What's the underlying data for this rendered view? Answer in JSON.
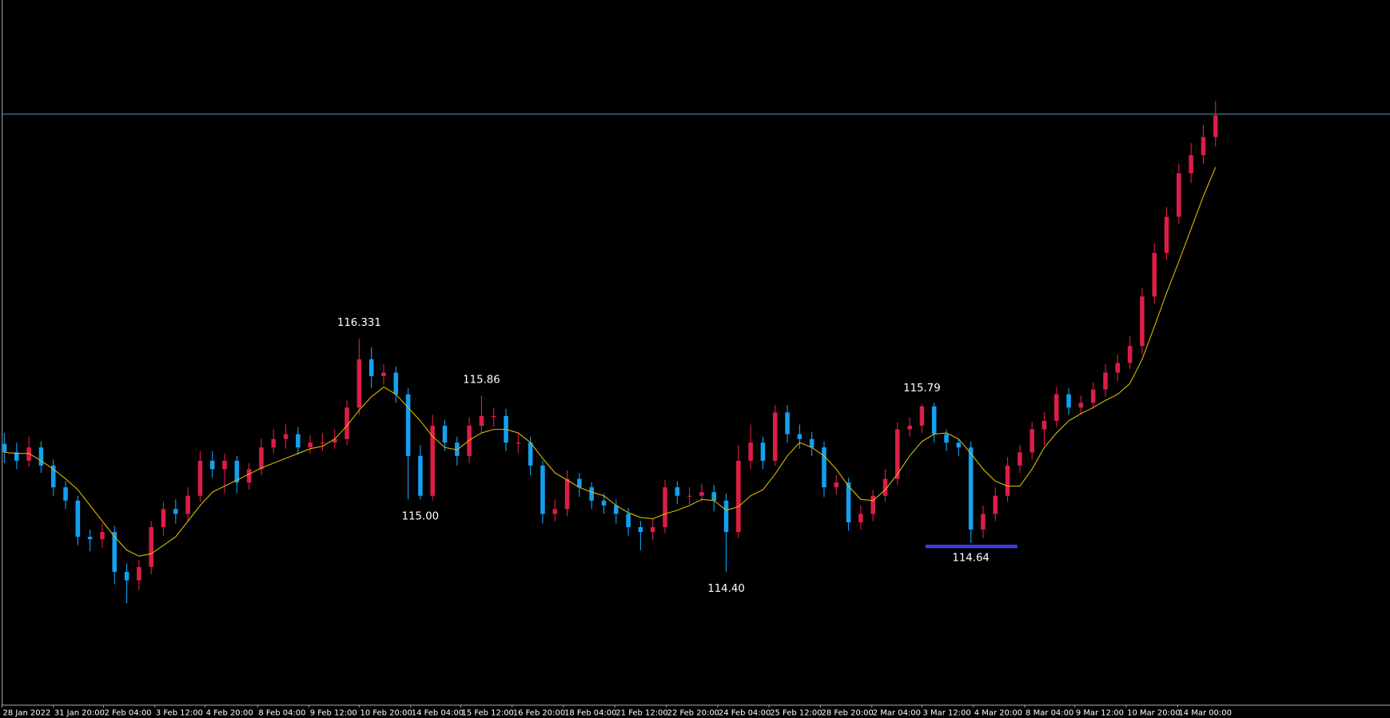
{
  "chart_data": {
    "type": "candlestick",
    "up_color": "#dc1e46",
    "down_color": "#14a0f0",
    "open": [
      115.46,
      115.39,
      115.32,
      115.43,
      115.28,
      115.1,
      114.99,
      114.69,
      114.67,
      114.73,
      114.4,
      114.33,
      114.44,
      114.77,
      114.92,
      114.88,
      115.03,
      115.32,
      115.25,
      115.32,
      115.14,
      115.25,
      115.43,
      115.5,
      115.54,
      115.43,
      115.47,
      115.47,
      115.5,
      115.76,
      116.16,
      116.02,
      116.05,
      115.87,
      115.36,
      115.03,
      115.61,
      115.47,
      115.36,
      115.61,
      115.69,
      115.69,
      115.47,
      115.47,
      115.28,
      114.88,
      114.92,
      115.17,
      115.1,
      114.99,
      114.95,
      114.88,
      114.77,
      114.73,
      114.77,
      115.1,
      115.03,
      115.03,
      115.06,
      114.99,
      114.73,
      115.32,
      115.47,
      115.32,
      115.72,
      115.54,
      115.5,
      115.43,
      115.1,
      115.14,
      114.81,
      114.88,
      115.03,
      115.17,
      115.58,
      115.61,
      115.77,
      115.54,
      115.47,
      115.43,
      114.75,
      114.88,
      115.03,
      115.28,
      115.39,
      115.58,
      115.65,
      115.87,
      115.76,
      115.8,
      115.91,
      116.05,
      116.13,
      116.27,
      116.68,
      117.04,
      117.34,
      117.7,
      117.85,
      118.0
    ],
    "high": [
      115.55,
      115.47,
      115.52,
      115.48,
      115.33,
      115.15,
      115.03,
      114.75,
      114.8,
      114.78,
      114.47,
      114.5,
      114.82,
      114.98,
      115.0,
      115.1,
      115.4,
      115.4,
      115.38,
      115.36,
      115.3,
      115.5,
      115.58,
      115.62,
      115.6,
      115.53,
      115.55,
      115.58,
      115.82,
      116.33,
      116.26,
      116.12,
      116.1,
      115.92,
      115.45,
      115.7,
      115.66,
      115.52,
      115.68,
      115.86,
      115.76,
      115.75,
      115.54,
      115.52,
      115.32,
      115.0,
      115.24,
      115.22,
      115.14,
      115.05,
      115.0,
      114.93,
      114.82,
      114.84,
      115.16,
      115.15,
      115.1,
      115.13,
      115.12,
      115.05,
      115.45,
      115.62,
      115.52,
      115.78,
      115.78,
      115.62,
      115.56,
      115.48,
      115.2,
      115.18,
      114.95,
      115.08,
      115.25,
      115.64,
      115.68,
      115.79,
      115.8,
      115.58,
      115.5,
      115.48,
      114.95,
      115.1,
      115.35,
      115.45,
      115.64,
      115.72,
      115.93,
      115.92,
      115.86,
      115.97,
      116.12,
      116.2,
      116.35,
      116.75,
      117.12,
      117.42,
      117.78,
      117.95,
      118.1,
      118.3
    ],
    "low": [
      115.3,
      115.25,
      115.27,
      115.22,
      115.03,
      114.92,
      114.62,
      114.57,
      114.6,
      114.3,
      114.14,
      114.25,
      114.38,
      114.7,
      114.8,
      114.82,
      114.98,
      115.18,
      115.05,
      115.05,
      115.08,
      115.2,
      115.38,
      115.42,
      115.37,
      115.38,
      115.4,
      115.42,
      115.45,
      115.7,
      115.92,
      115.95,
      115.8,
      115.0,
      115.0,
      114.99,
      115.4,
      115.28,
      115.3,
      115.55,
      115.6,
      115.4,
      115.38,
      115.2,
      114.8,
      114.82,
      114.86,
      115.02,
      114.92,
      114.88,
      114.8,
      114.7,
      114.58,
      114.66,
      114.72,
      114.96,
      114.96,
      114.98,
      114.9,
      114.4,
      114.68,
      115.25,
      115.25,
      115.28,
      115.47,
      115.42,
      115.36,
      115.02,
      115.04,
      114.74,
      114.75,
      114.82,
      114.98,
      115.12,
      115.52,
      115.55,
      115.47,
      115.4,
      115.36,
      114.64,
      114.68,
      114.82,
      114.98,
      115.22,
      115.33,
      115.45,
      115.6,
      115.7,
      115.7,
      115.75,
      115.85,
      115.98,
      116.08,
      116.2,
      116.62,
      116.98,
      117.28,
      117.62,
      117.78,
      117.92
    ],
    "close": [
      115.39,
      115.32,
      115.43,
      115.28,
      115.1,
      114.99,
      114.69,
      114.67,
      114.73,
      114.4,
      114.33,
      114.44,
      114.77,
      114.92,
      114.88,
      115.03,
      115.32,
      115.25,
      115.32,
      115.14,
      115.25,
      115.43,
      115.5,
      115.54,
      115.43,
      115.47,
      115.47,
      115.5,
      115.76,
      116.16,
      116.02,
      116.05,
      115.87,
      115.36,
      115.03,
      115.61,
      115.47,
      115.36,
      115.61,
      115.69,
      115.69,
      115.47,
      115.47,
      115.28,
      114.88,
      114.92,
      115.17,
      115.1,
      114.99,
      114.95,
      114.88,
      114.77,
      114.73,
      114.77,
      115.1,
      115.03,
      115.03,
      115.06,
      114.99,
      114.73,
      115.32,
      115.47,
      115.32,
      115.72,
      115.54,
      115.5,
      115.43,
      115.1,
      115.14,
      114.81,
      114.88,
      115.03,
      115.17,
      115.58,
      115.61,
      115.77,
      115.54,
      115.47,
      115.43,
      114.75,
      114.88,
      115.03,
      115.28,
      115.39,
      115.58,
      115.65,
      115.87,
      115.76,
      115.8,
      115.91,
      116.05,
      116.13,
      116.27,
      116.68,
      117.04,
      117.34,
      117.7,
      117.85,
      118.0,
      118.18
    ],
    "ma": {
      "color": "#d8b800",
      "values": [
        115.39,
        115.38,
        115.38,
        115.32,
        115.25,
        115.17,
        115.08,
        114.95,
        114.82,
        114.69,
        114.58,
        114.53,
        114.55,
        114.62,
        114.69,
        114.82,
        114.95,
        115.06,
        115.11,
        115.16,
        115.21,
        115.26,
        115.3,
        115.34,
        115.38,
        115.42,
        115.44,
        115.5,
        115.61,
        115.74,
        115.85,
        115.93,
        115.87,
        115.76,
        115.65,
        115.52,
        115.43,
        115.41,
        115.49,
        115.55,
        115.58,
        115.58,
        115.55,
        115.47,
        115.34,
        115.22,
        115.16,
        115.1,
        115.06,
        115.03,
        114.95,
        114.89,
        114.85,
        114.84,
        114.88,
        114.91,
        114.95,
        115.0,
        114.99,
        114.91,
        114.94,
        115.03,
        115.08,
        115.21,
        115.36,
        115.47,
        115.43,
        115.36,
        115.25,
        115.11,
        115.0,
        114.99,
        115.08,
        115.21,
        115.36,
        115.48,
        115.54,
        115.55,
        115.5,
        115.38,
        115.25,
        115.15,
        115.11,
        115.11,
        115.25,
        115.43,
        115.55,
        115.65,
        115.71,
        115.76,
        115.82,
        115.87,
        115.96,
        116.16,
        116.43,
        116.71,
        116.97,
        117.24,
        117.51,
        117.75
      ]
    },
    "price_line": {
      "value": 118.19,
      "color": "#5a7fb0"
    },
    "annotations": [
      {
        "value": 116.331,
        "label": "116.331",
        "x": 29,
        "position": "above"
      },
      {
        "value": 115,
        "label": "115.00",
        "x": 34,
        "position": "below"
      },
      {
        "value": 115.86,
        "label": "115.86",
        "x": 39,
        "position": "above"
      },
      {
        "value": 114.4,
        "label": "114.40",
        "x": 59,
        "position": "below"
      },
      {
        "value": 115.79,
        "label": "115.79",
        "x": 75,
        "position": "above"
      },
      {
        "value": 114.64,
        "label": "114.64",
        "x": 79,
        "position": "below",
        "underline": {
          "from": 75.3,
          "to": 82.8,
          "color": "#3c3ce0"
        }
      }
    ],
    "xlim": [
      -0.36,
      113.26
    ],
    "ylim": [
      113.3,
      119.135
    ],
    "xticks": [
      {
        "value": -0.2,
        "label": "28 Jan 2022"
      },
      {
        "value": 4.0,
        "label": "31 Jan 20:00"
      },
      {
        "value": 8.1,
        "label": "2 Feb 04:00"
      },
      {
        "value": 12.3,
        "label": "3 Feb 12:00"
      },
      {
        "value": 16.4,
        "label": "4 Feb 20:00"
      },
      {
        "value": 20.7,
        "label": "8 Feb 04:00"
      },
      {
        "value": 24.9,
        "label": "9 Feb 12:00"
      },
      {
        "value": 29.0,
        "label": "10 Feb 20:00"
      },
      {
        "value": 33.2,
        "label": "14 Feb 04:00"
      },
      {
        "value": 37.3,
        "label": "15 Feb 12:00"
      },
      {
        "value": 41.5,
        "label": "16 Feb 20:00"
      },
      {
        "value": 45.7,
        "label": "18 Feb 04:00"
      },
      {
        "value": 49.9,
        "label": "21 Feb 12:00"
      },
      {
        "value": 54.1,
        "label": "22 Feb 20:00"
      },
      {
        "value": 58.3,
        "label": "24 Feb 04:00"
      },
      {
        "value": 62.5,
        "label": "25 Feb 12:00"
      },
      {
        "value": 66.7,
        "label": "28 Feb 20:00"
      },
      {
        "value": 70.9,
        "label": "2 Mar 04:00"
      },
      {
        "value": 75.0,
        "label": "3 Mar 12:00"
      },
      {
        "value": 79.2,
        "label": "4 Mar 20:00"
      },
      {
        "value": 83.4,
        "label": "8 Mar 04:00"
      },
      {
        "value": 87.5,
        "label": "9 Mar 12:00"
      },
      {
        "value": 91.7,
        "label": "10 Mar 20:00"
      },
      {
        "value": 95.9,
        "label": "14 Mar 00:00"
      }
    ]
  }
}
